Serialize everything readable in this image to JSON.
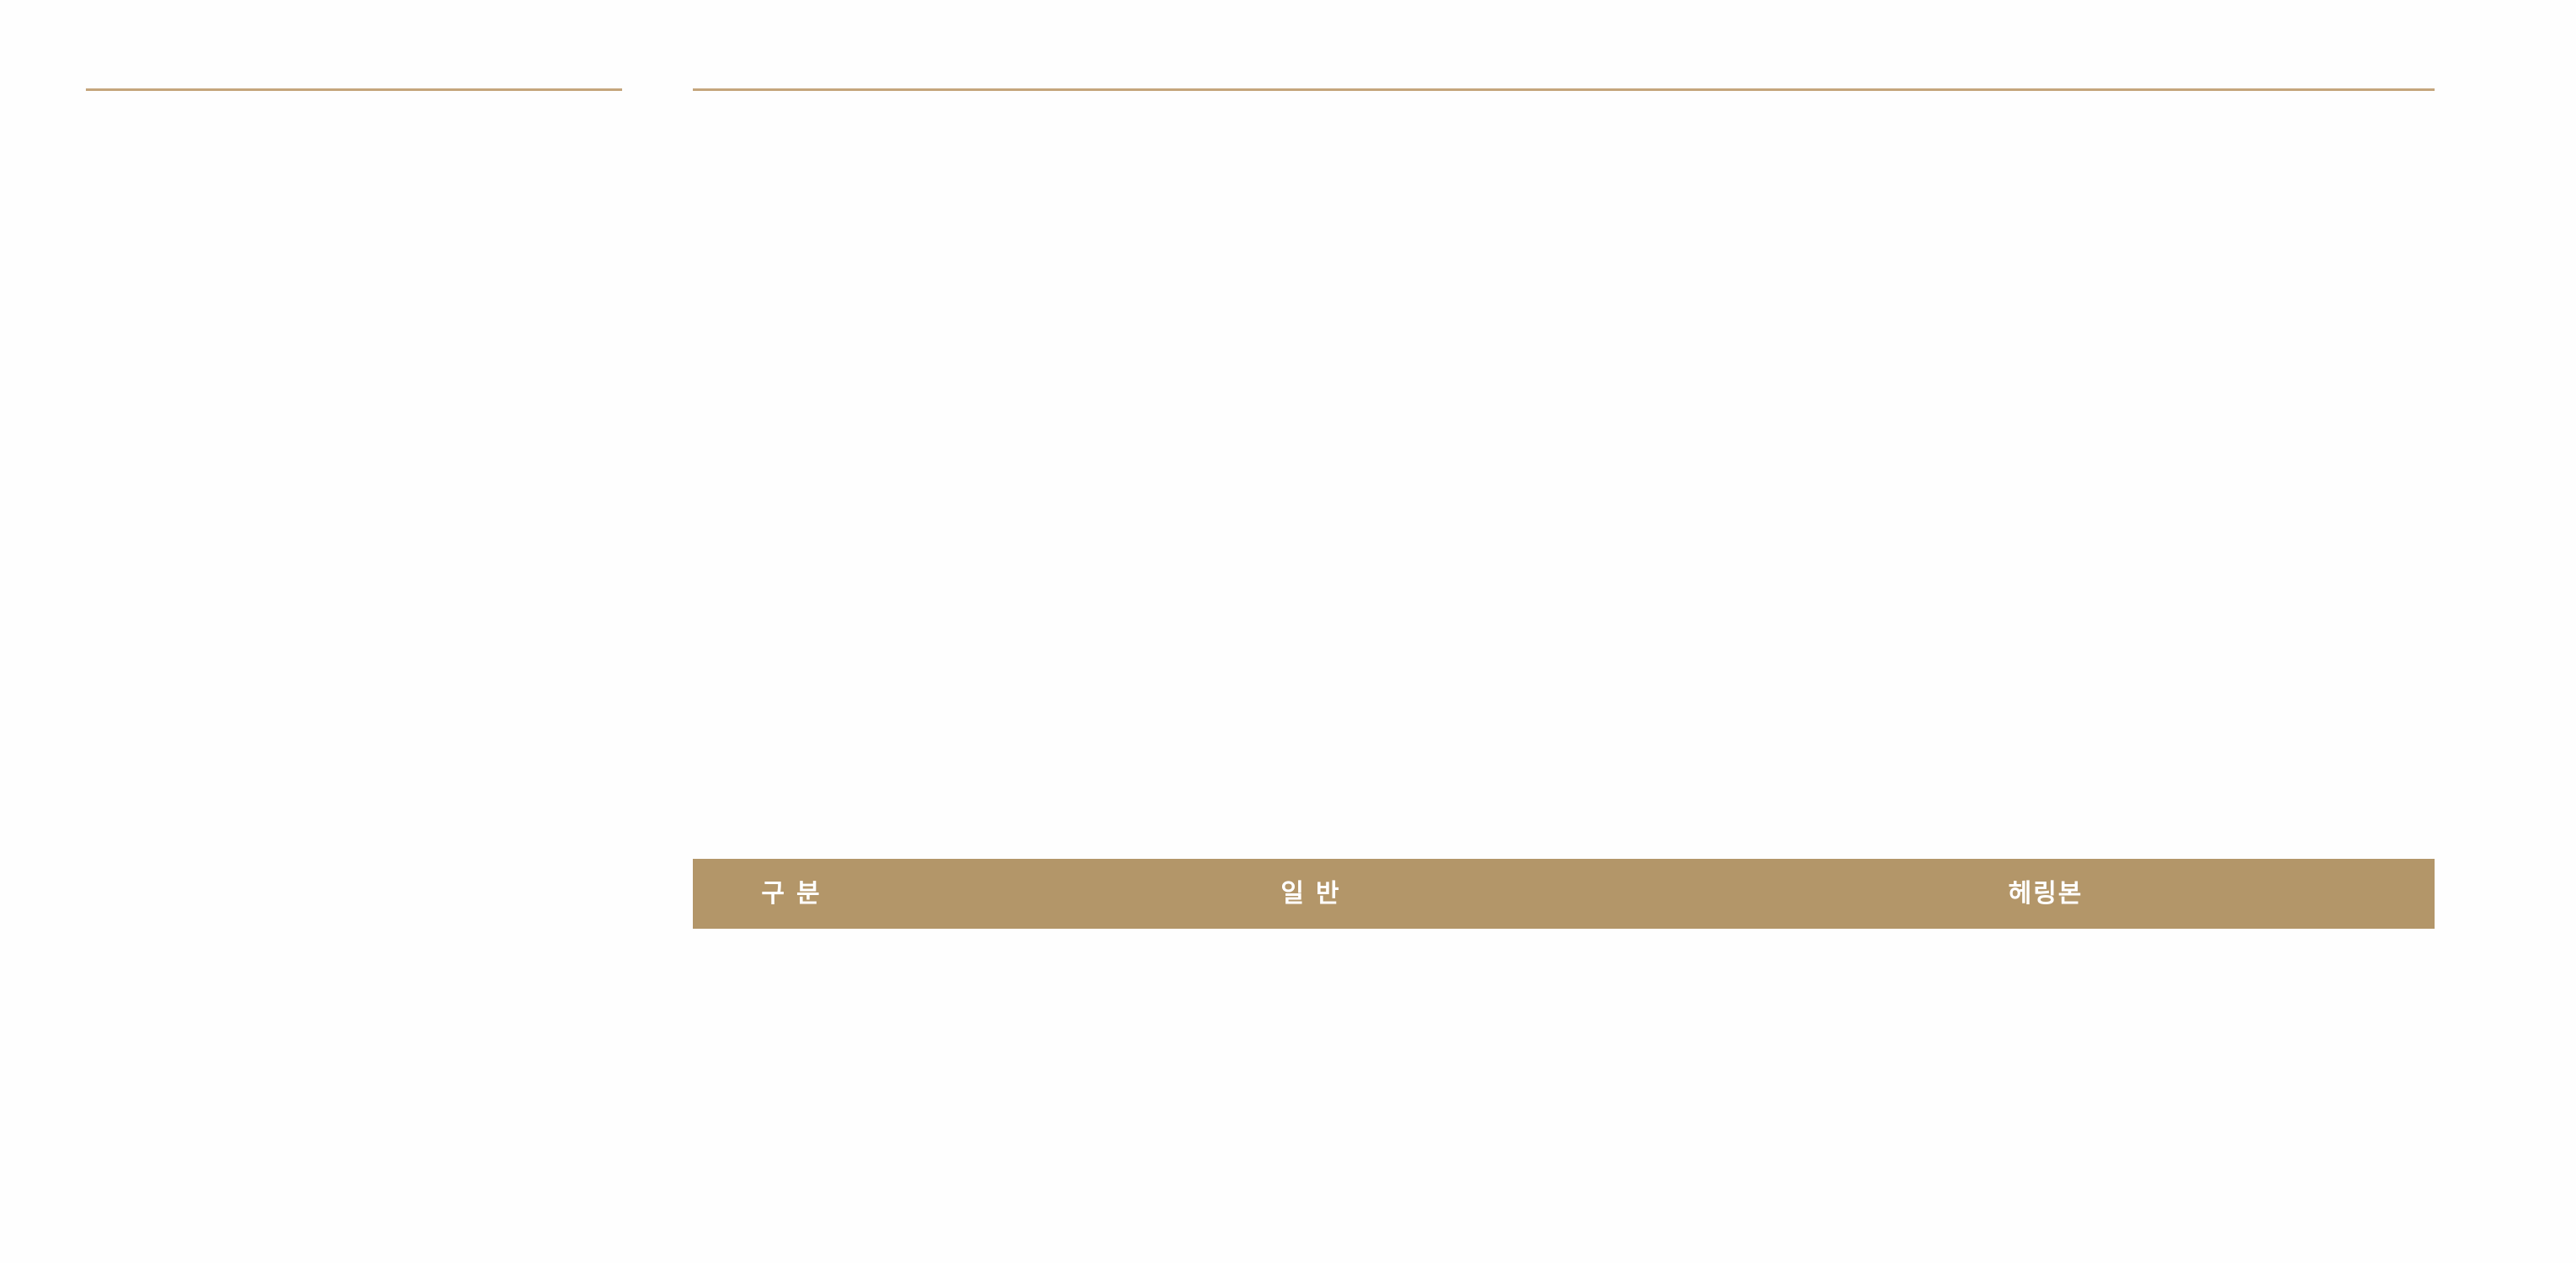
{
  "accent_color": "#b39669",
  "table": {
    "headers": [
      "구분",
      "일반",
      "헤링본"
    ]
  }
}
